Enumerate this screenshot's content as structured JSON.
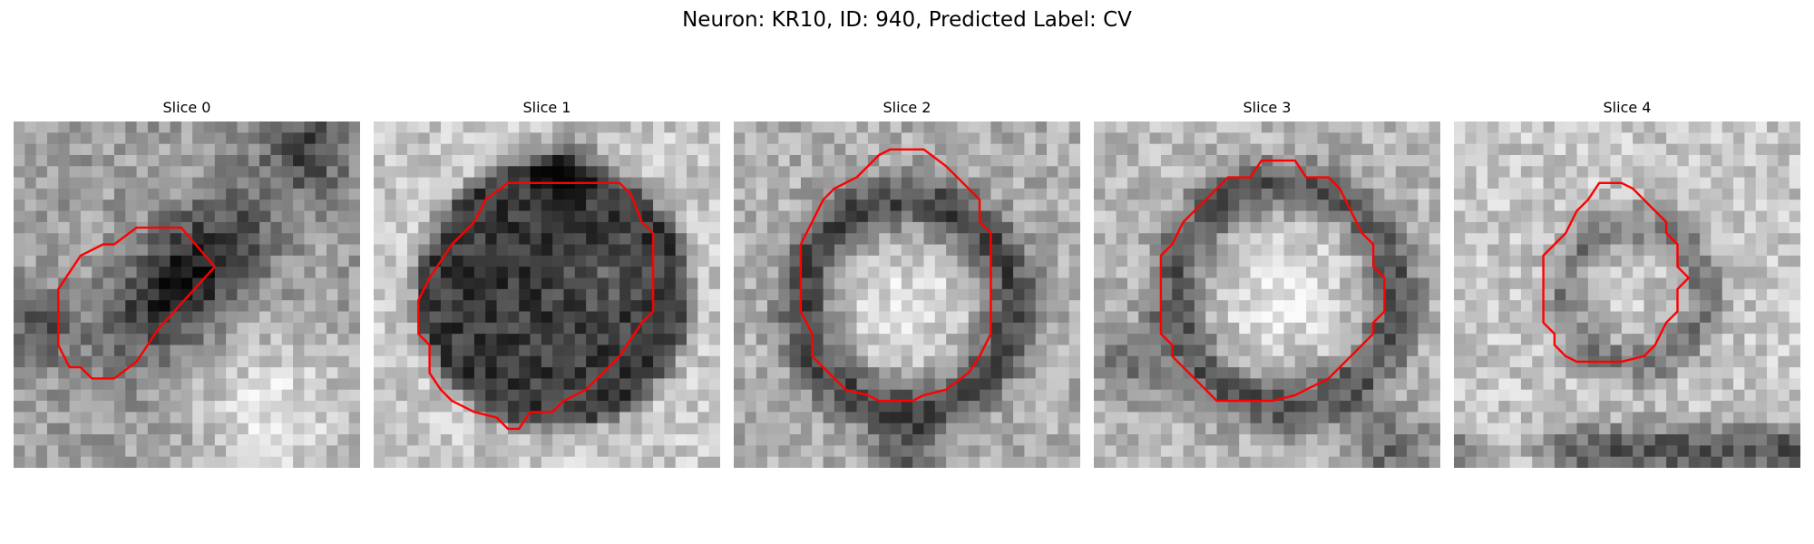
{
  "figure": {
    "title": "Neuron: KR10, ID: 940, Predicted Label: CV"
  },
  "panels": [
    {
      "title": "Slice 0"
    },
    {
      "title": "Slice 1"
    },
    {
      "title": "Slice 2"
    },
    {
      "title": "Slice 3"
    },
    {
      "title": "Slice 4"
    }
  ],
  "colors": {
    "contour": "#ff0000",
    "colormap": "grayscale"
  }
}
